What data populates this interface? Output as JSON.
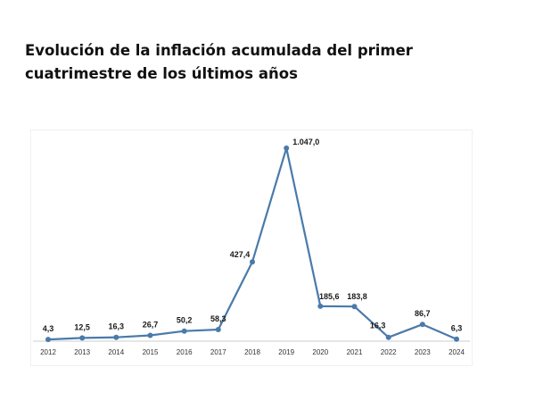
{
  "title": "Evolución de la inflación acumulada del primer cuatrimestre de los últimos años",
  "chart_data": {
    "type": "line",
    "title": "Evolución de la inflación acumulada del primer cuatrimestre de los últimos años",
    "categories": [
      "2012",
      "2013",
      "2014",
      "2015",
      "2016",
      "2017",
      "2018",
      "2019",
      "2020",
      "2021",
      "2022",
      "2023",
      "2024"
    ],
    "values": [
      4.3,
      12.5,
      16.3,
      26.7,
      50.2,
      58.3,
      427.4,
      1047.0,
      185.6,
      183.8,
      16.3,
      86.7,
      6.3
    ],
    "data_labels": [
      "4,3",
      "12,5",
      "16,3",
      "26,7",
      "50,2",
      "58,3",
      "427,4",
      "1.047,0",
      "185,6",
      "183,8",
      "16,3",
      "86,7",
      "6,3"
    ],
    "ylim": [
      0,
      1100
    ],
    "grid": false,
    "legend": "none",
    "line_color": "#4a7aaa",
    "marker_color": "#4a7aaa"
  }
}
